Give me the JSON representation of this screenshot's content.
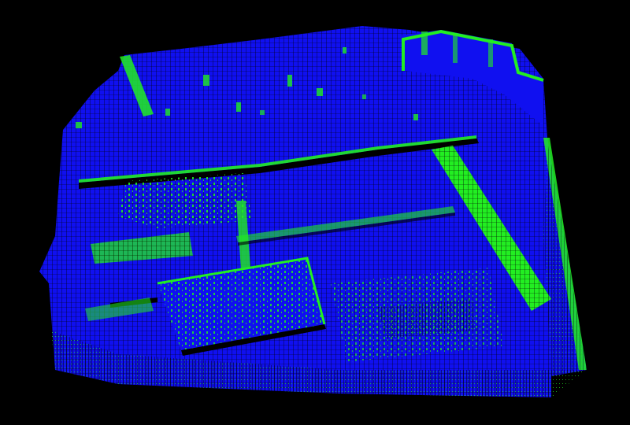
{
  "scene": {
    "kind": "voxel point cloud render",
    "background_color": "#000000",
    "primary_color": "#1010f0",
    "highlight_color": "#22ee22",
    "shadow_color": "#000000"
  }
}
